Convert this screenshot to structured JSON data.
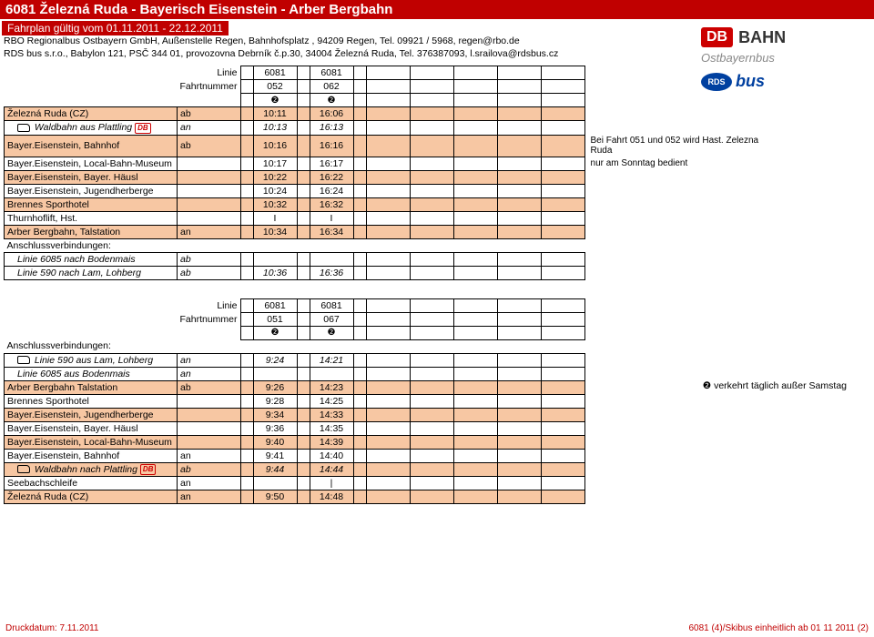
{
  "header": {
    "title": "6081 Železná Ruda - Bayerisch Eisenstein - Arber Bergbahn",
    "validity": "Fahrplan gültig vom 01.11.2011 - 22.12.2011",
    "line1": "RBO Regionalbus Ostbayern GmbH, Außenstelle Regen, Bahnhofsplatz , 94209 Regen, Tel. 09921 / 5968, regen@rbo.de",
    "line2": "RDS bus s.r.o., Babylon 121, PSČ 344 01, provozovna Debrník č.p.30, 34004 Železná Ruda, Tel. 376387093, l.srailova@rdsbus.cz"
  },
  "logos": {
    "db": "DB",
    "bahn": "BAHN",
    "ost": "Ostbayernbus",
    "rds": "RDS",
    "bus": "bus"
  },
  "t1": {
    "linie_lbl": "Linie",
    "fahrt_lbl": "Fahrtnummer",
    "line_a": "6081",
    "line_b": "6081",
    "trip_a": "052",
    "trip_b": "062",
    "sym": "❷",
    "rows": [
      {
        "stop": "Železná Ruda (CZ)",
        "ab": "ab",
        "a": "10:11",
        "b": "16:06",
        "band": true
      },
      {
        "stop": "Waldbahn aus Plattling",
        "ab": "an",
        "a": "10:13",
        "b": "16:13",
        "italic": true,
        "icon": true,
        "db": true
      },
      {
        "stop": "Bayer.Eisenstein, Bahnhof",
        "ab": "ab",
        "a": "10:16",
        "b": "16:16",
        "band": true,
        "note": "Bei Fahrt 051 und 052 wird Hast. Zelezna Ruda"
      },
      {
        "stop": "Bayer.Eisenstein, Local-Bahn-Museum",
        "ab": "",
        "a": "10:17",
        "b": "16:17",
        "note": "nur am Sonntag bedient"
      },
      {
        "stop": "Bayer.Eisenstein, Bayer. Häusl",
        "ab": "",
        "a": "10:22",
        "b": "16:22",
        "band": true
      },
      {
        "stop": "Bayer.Eisenstein, Jugendherberge",
        "ab": "",
        "a": "10:24",
        "b": "16:24"
      },
      {
        "stop": "Brennes Sporthotel",
        "ab": "",
        "a": "10:32",
        "b": "16:32",
        "band": true
      },
      {
        "stop": "Thurnhoflift, Hst.",
        "ab": "",
        "a": "I",
        "b": "I"
      },
      {
        "stop": "Arber Bergbahn, Talstation",
        "ab": "an",
        "a": "10:34",
        "b": "16:34",
        "band": true
      }
    ],
    "conn_hdr": "Anschlussverbindungen:",
    "conn": [
      {
        "stop": "Linie 6085  nach Bodenmais",
        "ab": "ab",
        "a": "",
        "b": ""
      },
      {
        "stop": "Linie 590  nach Lam, Lohberg",
        "ab": "ab",
        "a": "10:36",
        "b": "16:36"
      }
    ]
  },
  "t2": {
    "line_a": "6081",
    "line_b": "6081",
    "trip_a": "051",
    "trip_b": "067",
    "legend": "❷   verkehrt täglich außer Samstag",
    "conn_hdr": "Anschlussverbindungen:",
    "conn": [
      {
        "stop": "Linie 590  aus Lam, Lohberg",
        "ab": "an",
        "a": "9:24",
        "b": "14:21",
        "icon": true
      },
      {
        "stop": "Linie 6085 aus Bodenmais",
        "ab": "an",
        "a": "",
        "b": ""
      }
    ],
    "rows": [
      {
        "stop": "Arber Bergbahn Talstation",
        "ab": "ab",
        "a": "9:26",
        "b": "14:23",
        "band": true
      },
      {
        "stop": "Brennes Sporthotel",
        "ab": "",
        "a": "9:28",
        "b": "14:25"
      },
      {
        "stop": "Bayer.Eisenstein, Jugendherberge",
        "ab": "",
        "a": "9:34",
        "b": "14:33",
        "band": true
      },
      {
        "stop": "Bayer.Eisenstein, Bayer. Häusl",
        "ab": "",
        "a": "9:36",
        "b": "14:35"
      },
      {
        "stop": "Bayer.Eisenstein, Local-Bahn-Museum",
        "ab": "",
        "a": "9:40",
        "b": "14:39",
        "band": true
      },
      {
        "stop": "Bayer.Eisenstein, Bahnhof",
        "ab": "an",
        "a": "9:41",
        "b": "14:40"
      },
      {
        "stop": "Waldbahn nach Plattling",
        "ab": "ab",
        "a": "9:44",
        "b": "14:44",
        "band": true,
        "italic": true,
        "icon": true,
        "db": true
      },
      {
        "stop": "Seebachschleife",
        "ab": "an",
        "a": "",
        "b": "|"
      },
      {
        "stop": "Železná Ruda (CZ)",
        "ab": "an",
        "a": "9:50",
        "b": "14:48",
        "band": true
      }
    ]
  },
  "footer": {
    "left": "Druckdatum: 7.11.2011",
    "right": "6081 (4)/Skibus einheitlich ab 01 11 2011 (2)"
  }
}
